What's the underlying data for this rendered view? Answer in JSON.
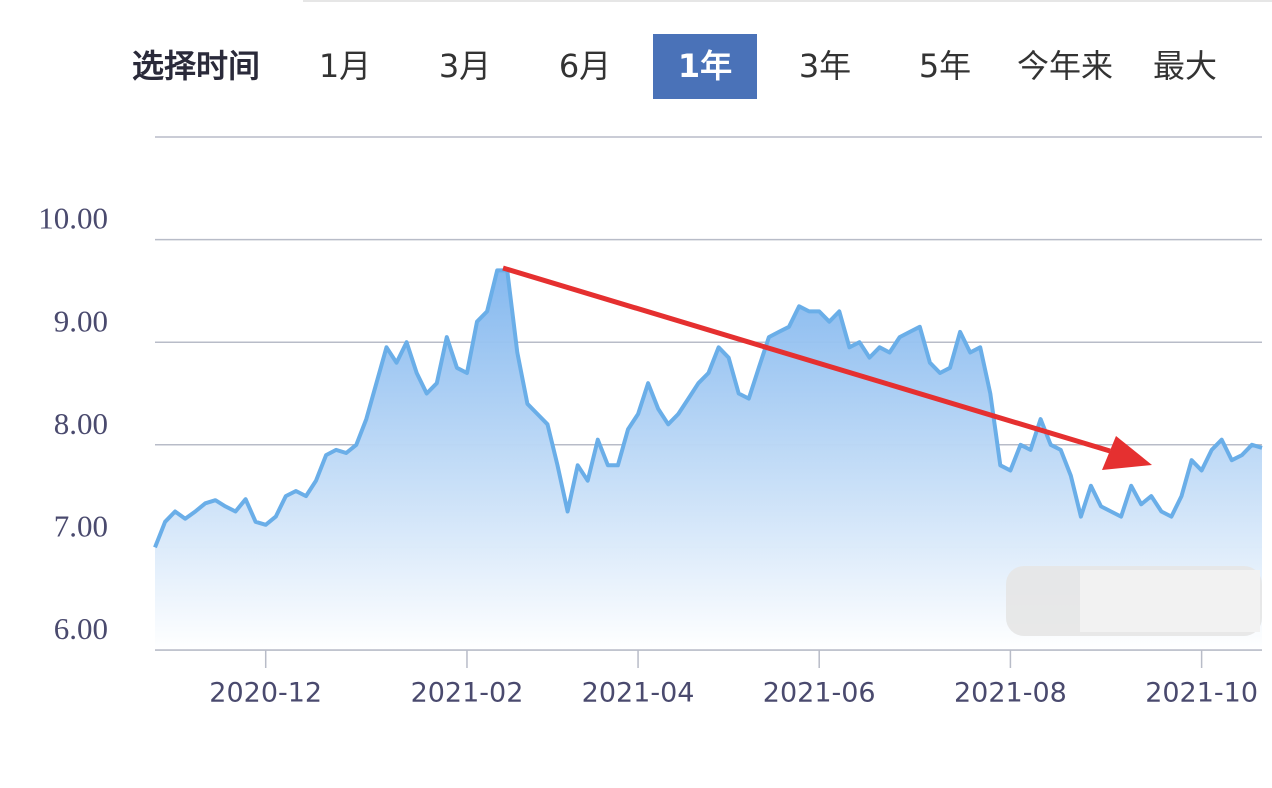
{
  "tabs": {
    "label": "选择时间",
    "items": [
      {
        "label": "1月",
        "active": false
      },
      {
        "label": "3月",
        "active": false
      },
      {
        "label": "6月",
        "active": false
      },
      {
        "label": "1年",
        "active": true
      },
      {
        "label": "3年",
        "active": false
      },
      {
        "label": "5年",
        "active": false
      },
      {
        "label": "今年来",
        "active": false
      },
      {
        "label": "最大",
        "active": false
      }
    ]
  },
  "chart_data": {
    "type": "area",
    "color": "#6aaee8",
    "grid": true,
    "categories": [
      null,
      null,
      null,
      null,
      null,
      null,
      null,
      null,
      null,
      null,
      null,
      "2020-12",
      null,
      null,
      null,
      null,
      null,
      null,
      null,
      null,
      null,
      null,
      null,
      null,
      null,
      null,
      null,
      null,
      null,
      null,
      null,
      "2021-02",
      null,
      null,
      null,
      null,
      null,
      null,
      null,
      null,
      null,
      null,
      null,
      null,
      null,
      null,
      null,
      null,
      "2021-04",
      null,
      null,
      null,
      null,
      null,
      null,
      null,
      null,
      null,
      null,
      null,
      null,
      null,
      null,
      null,
      null,
      null,
      "2021-06",
      null,
      null,
      null,
      null,
      null,
      null,
      null,
      null,
      null,
      null,
      null,
      null,
      null,
      null,
      null,
      null,
      null,
      null,
      "2021-08",
      null,
      null,
      null,
      null,
      null,
      null,
      null,
      null,
      null,
      null,
      null,
      null,
      null,
      null,
      null,
      null,
      null,
      null,
      "2021-10",
      null,
      null,
      null,
      null,
      null,
      null
    ],
    "values": [
      7.0,
      7.25,
      7.35,
      7.28,
      7.35,
      7.43,
      7.46,
      7.4,
      7.35,
      7.47,
      7.25,
      7.22,
      7.3,
      7.5,
      7.55,
      7.5,
      7.65,
      7.9,
      7.95,
      7.92,
      8.0,
      8.25,
      8.6,
      8.95,
      8.8,
      9.0,
      8.7,
      8.5,
      8.6,
      9.05,
      8.75,
      8.7,
      9.2,
      9.3,
      9.7,
      9.7,
      8.9,
      8.4,
      8.3,
      8.2,
      7.8,
      7.35,
      7.8,
      7.65,
      8.05,
      7.8,
      7.8,
      8.15,
      8.3,
      8.6,
      8.35,
      8.2,
      8.3,
      8.45,
      8.6,
      8.7,
      8.95,
      8.85,
      8.5,
      8.45,
      8.75,
      9.05,
      9.1,
      9.15,
      9.35,
      9.3,
      9.3,
      9.2,
      9.3,
      8.95,
      9.0,
      8.85,
      8.95,
      8.9,
      9.05,
      9.1,
      9.15,
      8.8,
      8.7,
      8.75,
      9.1,
      8.9,
      8.95,
      8.5,
      7.8,
      7.75,
      8.0,
      7.95,
      8.25,
      8.0,
      7.95,
      7.7,
      7.3,
      7.6,
      7.4,
      7.35,
      7.3,
      7.6,
      7.42,
      7.5,
      7.35,
      7.3,
      7.5,
      7.85,
      7.75,
      7.95,
      8.05,
      7.85,
      7.9,
      8.0,
      7.97
    ],
    "ylim": [
      6,
      11
    ],
    "yticks": [
      {
        "value": 6,
        "label": "6.00"
      },
      {
        "value": 7,
        "label": "7.00"
      },
      {
        "value": 8,
        "label": "8.00"
      },
      {
        "value": 9,
        "label": "9.00"
      },
      {
        "value": 10,
        "label": "10.00"
      }
    ]
  }
}
